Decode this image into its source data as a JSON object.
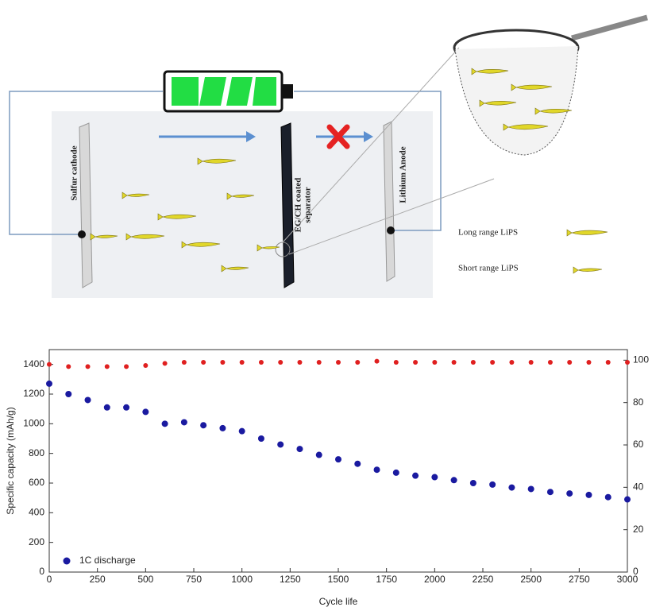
{
  "diagram": {
    "cathode": "Sulfur cathode",
    "separator": [
      "EG/CH coated",
      "separator"
    ],
    "anode": "Lithium Anode",
    "legend_long": "Long range LiPS",
    "legend_short": "Short range LiPS"
  },
  "chart_data": {
    "type": "scatter",
    "x_label": "Cycle life",
    "y_label": "Specific capacity (mAh/g)",
    "x": [
      0,
      100,
      200,
      300,
      400,
      500,
      600,
      700,
      800,
      900,
      1000,
      1100,
      1200,
      1300,
      1400,
      1500,
      1600,
      1700,
      1800,
      1900,
      2000,
      2100,
      2200,
      2300,
      2400,
      2500,
      2600,
      2700,
      2800,
      2900,
      3000
    ],
    "series": [
      {
        "name": "1C discharge",
        "color": "#1a1aa0",
        "values": [
          1270,
          1200,
          1160,
          1110,
          1110,
          1080,
          1000,
          1010,
          990,
          970,
          950,
          900,
          860,
          830,
          790,
          760,
          730,
          690,
          670,
          650,
          640,
          620,
          600,
          590,
          570,
          560,
          540,
          530,
          520,
          505,
          490
        ]
      },
      {
        "color": "#e02020",
        "axis": "y2",
        "values": [
          98,
          97,
          97,
          97,
          97,
          97.5,
          98.5,
          99,
          99,
          99,
          99,
          99,
          99,
          99,
          99,
          99,
          99,
          99.5,
          99,
          99,
          99,
          99,
          99,
          99,
          99,
          99,
          99,
          99,
          99,
          99,
          99
        ]
      }
    ],
    "xlim": [
      0,
      3000
    ],
    "xticks": [
      0,
      250,
      500,
      750,
      1000,
      1250,
      1500,
      1750,
      2000,
      2250,
      2500,
      2750,
      3000
    ],
    "ylim": [
      0,
      1500
    ],
    "yticks": [
      0,
      200,
      400,
      600,
      800,
      1000,
      1200,
      1400
    ],
    "y2lim": [
      0,
      105
    ],
    "y2ticks": [
      0,
      20,
      40,
      60,
      80,
      100
    ],
    "legend": "lower left"
  }
}
